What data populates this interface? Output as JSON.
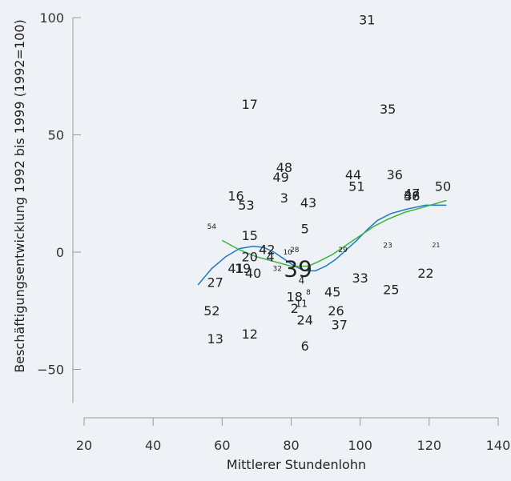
{
  "chart_data": {
    "type": "scatter",
    "title": "",
    "xlabel": "Mittlerer Stundenlohn",
    "ylabel": "Beschäftigungsentwicklung 1992 bis 1999 (1992=100)",
    "xlim": [
      20,
      140
    ],
    "ylim": [
      -65,
      100
    ],
    "x_ticks": [
      "20",
      "40",
      "60",
      "80",
      "100",
      "120",
      "140"
    ],
    "y_ticks": [
      "100",
      "50",
      "0",
      "−50"
    ],
    "y_tick_values": [
      100,
      50,
      0,
      -50
    ],
    "grid": false,
    "points": [
      {
        "label": "31",
        "x": 102,
        "y": 99,
        "size": 16
      },
      {
        "label": "17",
        "x": 68,
        "y": 63,
        "size": 16
      },
      {
        "label": "35",
        "x": 108,
        "y": 61,
        "size": 16
      },
      {
        "label": "48",
        "x": 78,
        "y": 36,
        "size": 16
      },
      {
        "label": "49",
        "x": 77,
        "y": 32,
        "size": 16
      },
      {
        "label": "44",
        "x": 98,
        "y": 33,
        "size": 16
      },
      {
        "label": "51",
        "x": 99,
        "y": 28,
        "size": 16
      },
      {
        "label": "36",
        "x": 110,
        "y": 33,
        "size": 16
      },
      {
        "label": "47",
        "x": 115,
        "y": 25,
        "size": 16
      },
      {
        "label": "38",
        "x": 115,
        "y": 24,
        "size": 16
      },
      {
        "label": "46",
        "x": 115,
        "y": 24,
        "size": 16
      },
      {
        "label": "50",
        "x": 124,
        "y": 28,
        "size": 16
      },
      {
        "label": "16",
        "x": 64,
        "y": 24,
        "size": 16
      },
      {
        "label": "53",
        "x": 67,
        "y": 20,
        "size": 16
      },
      {
        "label": "3",
        "x": 78,
        "y": 23,
        "size": 16
      },
      {
        "label": "43",
        "x": 85,
        "y": 21,
        "size": 16
      },
      {
        "label": "54",
        "x": 57,
        "y": 11,
        "size": 9
      },
      {
        "label": "5",
        "x": 84,
        "y": 10,
        "size": 16
      },
      {
        "label": "15",
        "x": 68,
        "y": 7,
        "size": 16
      },
      {
        "label": "29",
        "x": 95,
        "y": 1,
        "size": 9
      },
      {
        "label": "23",
        "x": 108,
        "y": 3,
        "size": 9
      },
      {
        "label": "42",
        "x": 73,
        "y": 1,
        "size": 16
      },
      {
        "label": "10",
        "x": 79,
        "y": 0,
        "size": 9
      },
      {
        "label": "28",
        "x": 81,
        "y": 1,
        "size": 9
      },
      {
        "label": "20",
        "x": 68,
        "y": -2,
        "size": 16
      },
      {
        "label": "4",
        "x": 74,
        "y": -2,
        "size": 16
      },
      {
        "label": "32",
        "x": 76,
        "y": -7,
        "size": 9
      },
      {
        "label": "41",
        "x": 64,
        "y": -7,
        "size": 16
      },
      {
        "label": "19",
        "x": 66,
        "y": -7,
        "size": 16
      },
      {
        "label": "40",
        "x": 69,
        "y": -9,
        "size": 16
      },
      {
        "label": "39",
        "x": 82,
        "y": -7,
        "size": 28
      },
      {
        "label": "21",
        "x": 122,
        "y": 3,
        "size": 8
      },
      {
        "label": "22",
        "x": 119,
        "y": -9,
        "size": 16
      },
      {
        "label": "33",
        "x": 100,
        "y": -11,
        "size": 16
      },
      {
        "label": "4",
        "x": 83,
        "y": -12,
        "size": 12
      },
      {
        "label": "27",
        "x": 58,
        "y": -13,
        "size": 16
      },
      {
        "label": "25",
        "x": 109,
        "y": -16,
        "size": 16
      },
      {
        "label": "8",
        "x": 85,
        "y": -17,
        "size": 9
      },
      {
        "label": "45",
        "x": 92,
        "y": -17,
        "size": 16
      },
      {
        "label": "18",
        "x": 81,
        "y": -19,
        "size": 16
      },
      {
        "label": "11",
        "x": 83,
        "y": -22,
        "size": 12
      },
      {
        "label": "2",
        "x": 81,
        "y": -24,
        "size": 16
      },
      {
        "label": "52",
        "x": 57,
        "y": -25,
        "size": 16
      },
      {
        "label": "26",
        "x": 93,
        "y": -25,
        "size": 16
      },
      {
        "label": "24",
        "x": 84,
        "y": -29,
        "size": 16
      },
      {
        "label": "37",
        "x": 94,
        "y": -31,
        "size": 16
      },
      {
        "label": "12",
        "x": 68,
        "y": -35,
        "size": 16
      },
      {
        "label": "13",
        "x": 58,
        "y": -37,
        "size": 16
      },
      {
        "label": "6",
        "x": 84,
        "y": -40,
        "size": 16
      }
    ],
    "series": [
      {
        "color": "#1f78c8",
        "points": [
          [
            53,
            -14
          ],
          [
            57,
            -7
          ],
          [
            61,
            -2
          ],
          [
            65,
            1.5
          ],
          [
            69,
            2.5
          ],
          [
            72,
            2
          ],
          [
            75,
            0
          ],
          [
            78,
            -3
          ],
          [
            81,
            -6
          ],
          [
            84,
            -8
          ],
          [
            87,
            -8
          ],
          [
            90,
            -6
          ],
          [
            93,
            -3
          ],
          [
            96,
            1
          ],
          [
            99,
            5
          ],
          [
            102,
            9.5
          ],
          [
            105,
            13.5
          ],
          [
            109,
            16.5
          ],
          [
            114,
            18.5
          ],
          [
            119,
            20
          ],
          [
            125,
            20
          ]
        ]
      },
      {
        "color": "#3cb23c",
        "points": [
          [
            60,
            5
          ],
          [
            65,
            1
          ],
          [
            70,
            -2
          ],
          [
            75,
            -4
          ],
          [
            80,
            -6
          ],
          [
            85,
            -6
          ],
          [
            88,
            -4
          ],
          [
            92,
            -1
          ],
          [
            96,
            3
          ],
          [
            100,
            7
          ],
          [
            104,
            11
          ],
          [
            108,
            14
          ],
          [
            113,
            17
          ],
          [
            118,
            19
          ],
          [
            125,
            22
          ]
        ]
      }
    ]
  }
}
